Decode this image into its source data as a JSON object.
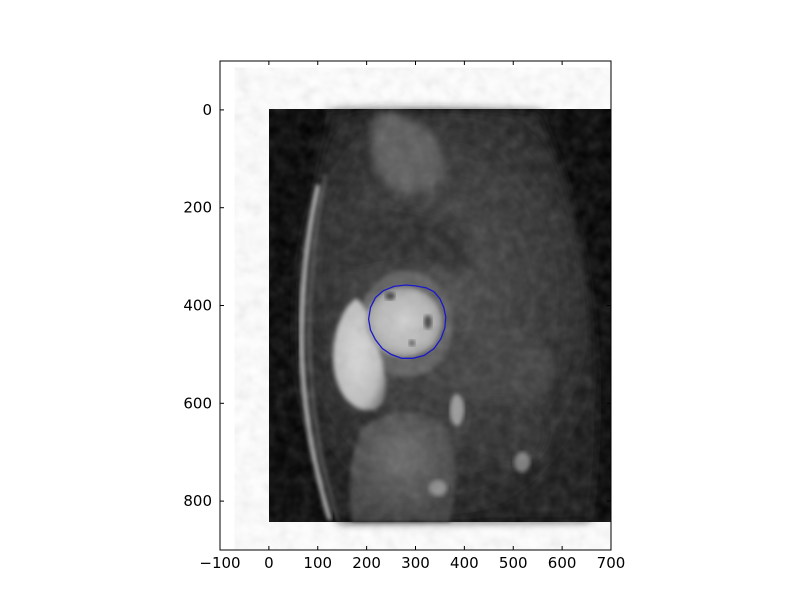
{
  "chart_data": {
    "type": "image-with-contour",
    "title": "",
    "xlabel": "",
    "ylabel": "",
    "xlim": [
      -100,
      700
    ],
    "ylim": [
      900,
      -100
    ],
    "y_inverted": true,
    "xticks": [
      -100,
      0,
      100,
      200,
      300,
      400,
      500,
      600,
      700
    ],
    "yticks": [
      0,
      200,
      400,
      600,
      800
    ],
    "xtick_labels": [
      "−100",
      "0",
      "100",
      "200",
      "300",
      "400",
      "500",
      "600",
      "700"
    ],
    "ytick_labels": [
      "0",
      "200",
      "400",
      "600",
      "800"
    ],
    "grid": false,
    "image": {
      "description_name": "cardiac-mri-short-axis-slice",
      "extent": {
        "x": [
          0,
          700
        ],
        "y": [
          0,
          845
        ]
      },
      "colormap": "gray"
    },
    "contour": {
      "color": "#1a1acc",
      "points": [
        [
          280,
          358
        ],
        [
          300,
          360
        ],
        [
          322,
          364
        ],
        [
          338,
          372
        ],
        [
          350,
          386
        ],
        [
          358,
          404
        ],
        [
          362,
          424
        ],
        [
          360,
          446
        ],
        [
          352,
          468
        ],
        [
          338,
          488
        ],
        [
          318,
          502
        ],
        [
          295,
          508
        ],
        [
          272,
          508
        ],
        [
          250,
          500
        ],
        [
          232,
          488
        ],
        [
          218,
          470
        ],
        [
          208,
          450
        ],
        [
          204,
          428
        ],
        [
          208,
          404
        ],
        [
          218,
          384
        ],
        [
          234,
          370
        ],
        [
          256,
          361
        ]
      ]
    }
  },
  "colors": {
    "axes_frame": "#000000",
    "background": "#ffffff",
    "image_bg": "#000000",
    "contour": "#1a1acc"
  }
}
